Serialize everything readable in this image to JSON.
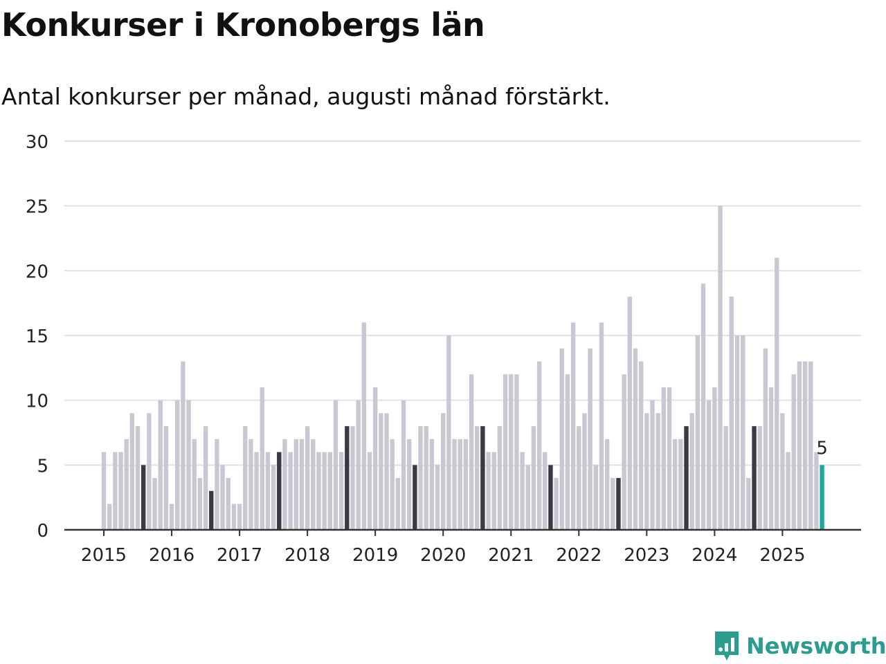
{
  "header": {
    "title": "Konkurser i Kronobergs län",
    "subtitle": "Antal konkurser per månad, augusti månad förstärkt."
  },
  "brand": {
    "name": "Newsworthy",
    "color": "#2a9d8f"
  },
  "colors": {
    "regular_bar": "#c8c8d2",
    "highlight_bar": "#3a3a45",
    "latest_bar": "#1fa79a",
    "gridline": "#e2e2e2",
    "axis": "#333333",
    "text": "#222222"
  },
  "chart_data": {
    "type": "bar",
    "xlabel": "",
    "ylabel": "",
    "ylim": [
      0,
      30
    ],
    "yticks": [
      0,
      5,
      10,
      15,
      20,
      25,
      30
    ],
    "xticks": [
      "2015",
      "2016",
      "2017",
      "2018",
      "2019",
      "2020",
      "2021",
      "2022",
      "2023",
      "2024",
      "2025"
    ],
    "grid": true,
    "start_period": "2015-01",
    "highlight_month": "augusti",
    "latest_label": "5",
    "values": [
      6,
      2,
      6,
      6,
      7,
      9,
      8,
      5,
      9,
      4,
      10,
      8,
      2,
      10,
      13,
      10,
      7,
      4,
      8,
      3,
      7,
      5,
      4,
      2,
      2,
      8,
      7,
      6,
      11,
      6,
      5,
      6,
      7,
      6,
      7,
      7,
      8,
      7,
      6,
      6,
      6,
      10,
      6,
      8,
      8,
      10,
      16,
      6,
      11,
      9,
      9,
      7,
      4,
      10,
      7,
      5,
      8,
      8,
      7,
      5,
      9,
      15,
      7,
      7,
      7,
      12,
      8,
      8,
      6,
      6,
      8,
      12,
      12,
      12,
      6,
      5,
      8,
      13,
      6,
      5,
      4,
      14,
      12,
      16,
      8,
      9,
      14,
      5,
      16,
      7,
      4,
      4,
      12,
      18,
      14,
      13,
      9,
      10,
      9,
      11,
      11,
      7,
      7,
      8,
      9,
      15,
      19,
      10,
      11,
      25,
      8,
      18,
      15,
      15,
      4,
      8,
      8,
      14,
      11,
      21,
      9,
      6,
      12,
      13,
      13,
      13,
      6,
      5
    ]
  }
}
